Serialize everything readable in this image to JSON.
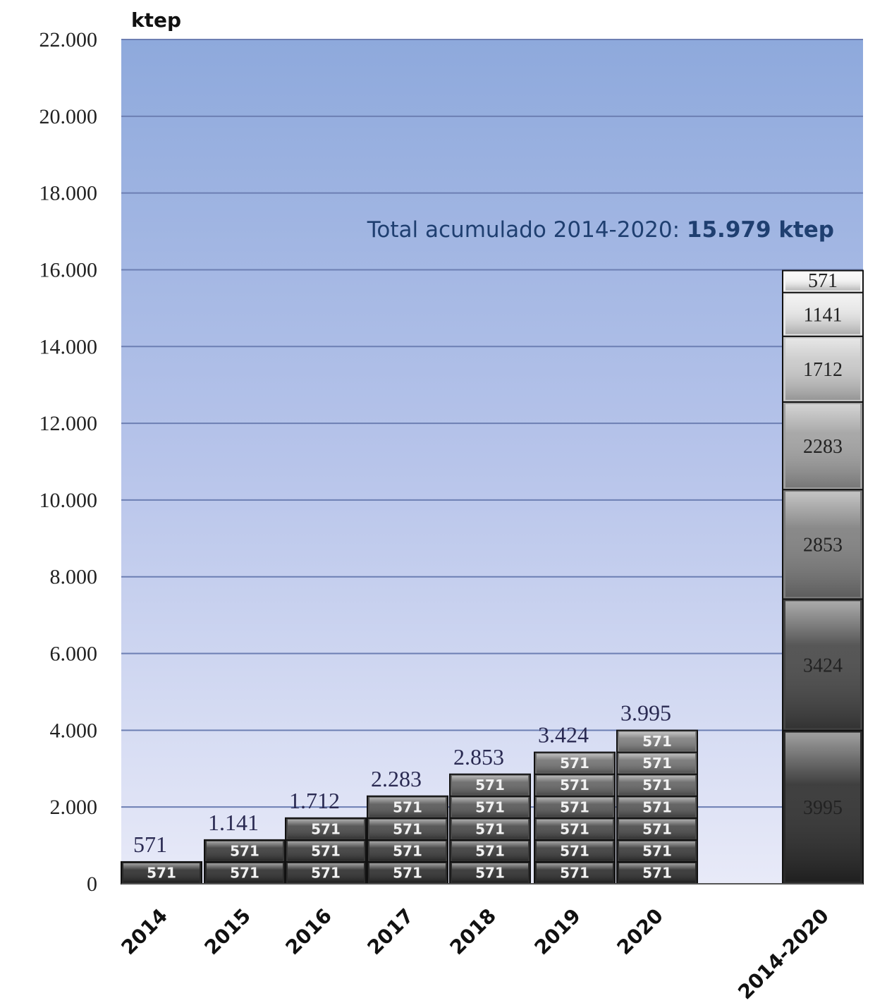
{
  "chart_data": {
    "type": "bar",
    "stacked": true,
    "unit": "ktep",
    "categories": [
      "2014",
      "2015",
      "2016",
      "2017",
      "2018",
      "2019",
      "2020",
      "2014-2020"
    ],
    "yticks": [
      "0",
      "2.000",
      "4.000",
      "6.000",
      "8.000",
      "10.000",
      "12.000",
      "14.000",
      "16.000",
      "18.000",
      "20.000",
      "22.000"
    ],
    "ylim": [
      0,
      22000
    ],
    "grid": true,
    "annual_totals": [
      571,
      1141,
      1712,
      2283,
      2853,
      3424,
      3995
    ],
    "annual_total_labels": [
      "571",
      "1.141",
      "1.712",
      "2.283",
      "2.853",
      "3.424",
      "3.995"
    ],
    "annual_segment_value": 571,
    "annual_segment_label": "571",
    "annual_segment_counts": [
      1,
      2,
      3,
      4,
      5,
      6,
      7
    ],
    "cumulative_segments": [
      3995,
      3424,
      2853,
      2283,
      1712,
      1141,
      571
    ],
    "cumulative_segment_labels": [
      "3995",
      "3424",
      "2853",
      "2283",
      "1712",
      "1141",
      "571"
    ],
    "annotation": {
      "prefix": "Total acumulado 2014-2020: ",
      "value": "15.979 ktep"
    }
  },
  "colors": {
    "background_top": "#8ea9dc",
    "background_bottom": "#e6e9f7",
    "grid": "#6d7fb3",
    "bar_dark": "#2b2b2b",
    "bar_border": "#111111"
  }
}
